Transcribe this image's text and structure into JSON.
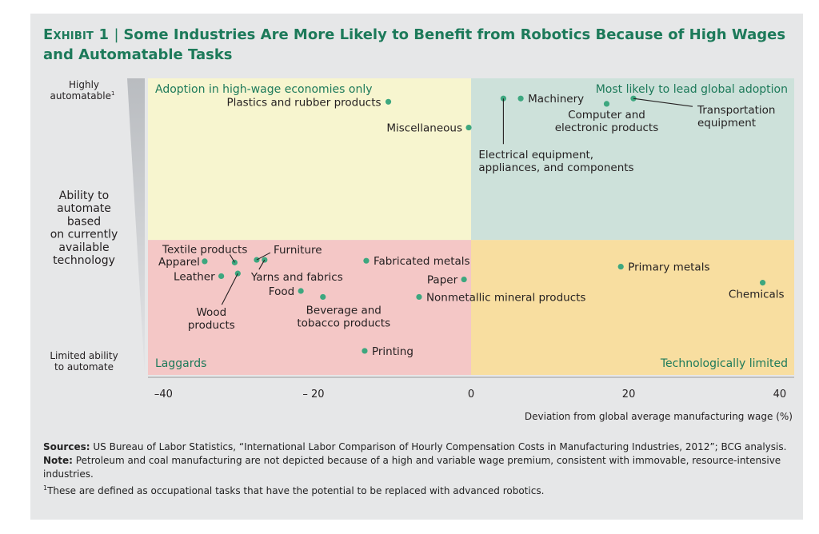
{
  "header": {
    "exhibit": "Exhibit 1",
    "title": "Some Industries Are More Likely to Benefit from Robotics Because of High Wages and Automatable Tasks"
  },
  "chart_data": {
    "type": "scatter",
    "title": "Some Industries Are More Likely to Benefit from Robotics Because of High Wages and Automatable Tasks",
    "xlabel": "Deviation from global average manufacturing wage (%)",
    "ylabel": "Ability to automate based on currently available technology",
    "y_axis_labels": {
      "top": "Highly automatable",
      "top_footnote": "1",
      "bottom": "Limited ability to automate"
    },
    "xlim": [
      -41,
      41
    ],
    "xticks": [
      {
        "value": -40,
        "label": "–40"
      },
      {
        "value": -20,
        "label": "– 20"
      },
      {
        "value": 0,
        "label": "0"
      },
      {
        "value": 20,
        "label": "20"
      },
      {
        "value": 40,
        "label": "40"
      }
    ],
    "ylim": [
      0,
      1
    ],
    "y_divider": 0.455,
    "grid": false,
    "quadrants": [
      {
        "name": "Adoption in high-wage economies only",
        "position": "top-left",
        "color": "#f7f5cf"
      },
      {
        "name": "Most likely to lead global adoption",
        "position": "top-right",
        "color": "#cde1da"
      },
      {
        "name": "Laggards",
        "position": "bottom-left",
        "color": "#f4c7c6"
      },
      {
        "name": "Technologically limited",
        "position": "bottom-right",
        "color": "#f8dea0"
      }
    ],
    "point_color": "#3da77f",
    "points": [
      {
        "name": "Plastics and rubber products",
        "x": -10.5,
        "y": 0.921
      },
      {
        "name": "Miscellaneous",
        "x": -0.3,
        "y": 0.834
      },
      {
        "name": "Electrical equipment, appliances, and components",
        "x": 4.1,
        "y": 0.932
      },
      {
        "name": "Machinery",
        "x": 6.3,
        "y": 0.932
      },
      {
        "name": "Computer and electronic products",
        "x": 17.2,
        "y": 0.914
      },
      {
        "name": "Transportation equipment",
        "x": 20.6,
        "y": 0.932
      },
      {
        "name": "Textile products",
        "x": -30.0,
        "y": 0.379
      },
      {
        "name": "Apparel",
        "x": -33.8,
        "y": 0.383
      },
      {
        "name": "Furniture",
        "x": -27.2,
        "y": 0.388
      },
      {
        "name": "Yarns and fabrics",
        "x": -26.2,
        "y": 0.388
      },
      {
        "name": "Wood products",
        "x": -29.6,
        "y": 0.342
      },
      {
        "name": "Leather",
        "x": -31.7,
        "y": 0.333
      },
      {
        "name": "Food",
        "x": -21.6,
        "y": 0.283
      },
      {
        "name": "Beverage and tobacco products",
        "x": -18.8,
        "y": 0.263
      },
      {
        "name": "Fabricated metals",
        "x": -13.3,
        "y": 0.385
      },
      {
        "name": "Paper",
        "x": -0.9,
        "y": 0.322
      },
      {
        "name": "Nonmetallic mineral products",
        "x": -6.6,
        "y": 0.263
      },
      {
        "name": "Printing",
        "x": -13.5,
        "y": 0.081
      },
      {
        "name": "Primary metals",
        "x": 19.0,
        "y": 0.365
      },
      {
        "name": "Chemicals",
        "x": 37.0,
        "y": 0.311
      }
    ]
  },
  "notes": {
    "sources_label": "Sources:",
    "sources": "US Bureau of Labor Statistics, “International Labor Comparison of Hourly Compensation Costs in Manufacturing Industries, 2012”; BCG analysis.",
    "note_label": "Note:",
    "note": "Petroleum and coal manufacturing are not depicted because of a high and variable wage premium, consistent with immovable, resource-intensive industries.",
    "footnote_marker": "1",
    "footnote": "These are defined as occupational tasks that have the potential to be replaced with advanced robotics."
  }
}
